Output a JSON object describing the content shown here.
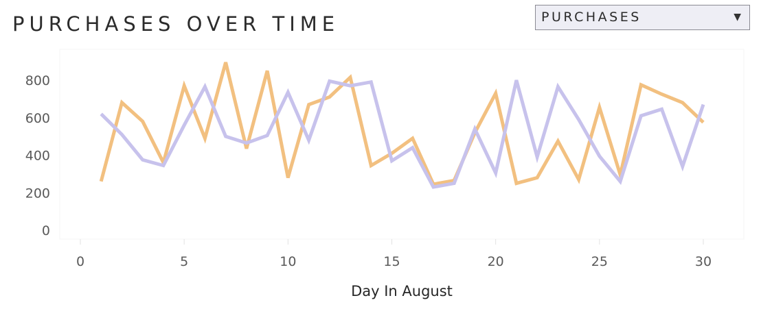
{
  "header": {
    "title": "PURCHASES OVER TIME"
  },
  "metric_select": {
    "selected": "PURCHASES",
    "caret_icon": "chevron-down-icon"
  },
  "colors": {
    "series_orange": "#f2c080",
    "series_purple": "#c7c2ec"
  },
  "chart_data": {
    "type": "line",
    "title": "PURCHASES OVER TIME",
    "xlabel": "Day In August",
    "ylabel": "",
    "xlim": [
      0,
      30
    ],
    "ylim": [
      0,
      800
    ],
    "x_ticks": [
      0,
      5,
      10,
      15,
      20,
      25,
      30
    ],
    "y_ticks": [
      0,
      200,
      400,
      600,
      800
    ],
    "grid": false,
    "x": [
      1,
      2,
      3,
      4,
      5,
      6,
      7,
      8,
      9,
      10,
      11,
      12,
      13,
      14,
      15,
      16,
      17,
      18,
      19,
      20,
      21,
      22,
      23,
      24,
      25,
      26,
      27,
      28,
      29,
      30
    ],
    "series": [
      {
        "color": "#f2c080",
        "values": [
          260,
          680,
          580,
          360,
          770,
          490,
          895,
          435,
          850,
          280,
          670,
          710,
          815,
          345,
          410,
          490,
          245,
          265,
          520,
          730,
          250,
          280,
          475,
          270,
          655,
          295,
          775,
          725,
          680,
          575
        ]
      },
      {
        "color": "#c7c2ec",
        "values": [
          620,
          510,
          375,
          345,
          560,
          765,
          500,
          465,
          505,
          735,
          480,
          795,
          770,
          790,
          370,
          440,
          230,
          250,
          540,
          305,
          800,
          390,
          765,
          590,
          395,
          260,
          610,
          645,
          340,
          670
        ]
      }
    ]
  }
}
